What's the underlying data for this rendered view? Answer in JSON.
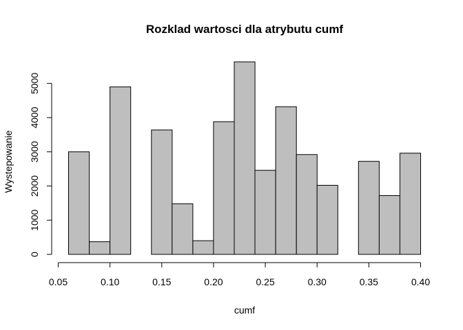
{
  "chart_data": {
    "type": "bar",
    "title": "Rozklad wartosci dla atrybutu cumf",
    "xlabel": "cumf",
    "ylabel": "Wystepowanie",
    "bin_width": 0.02,
    "bins": [
      {
        "start": 0.06,
        "end": 0.08,
        "count": 3000
      },
      {
        "start": 0.08,
        "end": 0.1,
        "count": 370
      },
      {
        "start": 0.1,
        "end": 0.12,
        "count": 4900
      },
      {
        "start": 0.12,
        "end": 0.14,
        "count": 0
      },
      {
        "start": 0.14,
        "end": 0.16,
        "count": 3640
      },
      {
        "start": 0.16,
        "end": 0.18,
        "count": 1480
      },
      {
        "start": 0.18,
        "end": 0.2,
        "count": 400
      },
      {
        "start": 0.2,
        "end": 0.22,
        "count": 3880
      },
      {
        "start": 0.22,
        "end": 0.24,
        "count": 5630
      },
      {
        "start": 0.24,
        "end": 0.26,
        "count": 2460
      },
      {
        "start": 0.26,
        "end": 0.28,
        "count": 4320
      },
      {
        "start": 0.28,
        "end": 0.3,
        "count": 2920
      },
      {
        "start": 0.3,
        "end": 0.32,
        "count": 2020
      },
      {
        "start": 0.32,
        "end": 0.34,
        "count": 0
      },
      {
        "start": 0.34,
        "end": 0.36,
        "count": 2720
      },
      {
        "start": 0.36,
        "end": 0.38,
        "count": 1720
      },
      {
        "start": 0.38,
        "end": 0.4,
        "count": 2960
      }
    ],
    "xlim": [
      0.05,
      0.4
    ],
    "ylim": [
      0,
      5630
    ],
    "xticks": [
      0.05,
      0.1,
      0.15,
      0.2,
      0.25,
      0.3,
      0.35,
      0.4
    ],
    "xtick_labels": [
      "0.05",
      "0.10",
      "0.15",
      "0.20",
      "0.25",
      "0.30",
      "0.35",
      "0.40"
    ],
    "yticks": [
      0,
      1000,
      2000,
      3000,
      4000,
      5000
    ],
    "ytick_labels": [
      "0",
      "1000",
      "2000",
      "3000",
      "4000",
      "5000"
    ],
    "grid": false,
    "bar_color": "#bebebe",
    "edge_color": "#000000"
  }
}
